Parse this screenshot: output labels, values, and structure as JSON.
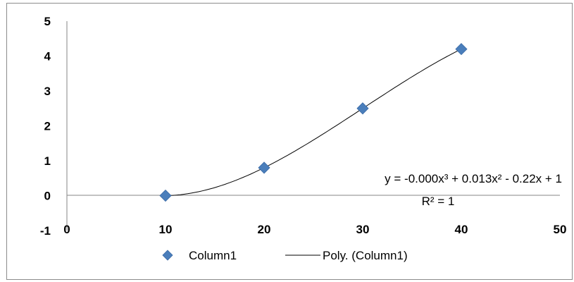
{
  "chart_data": {
    "type": "scatter",
    "x": [
      10,
      20,
      30,
      40
    ],
    "series": [
      {
        "name": "Column1",
        "values": [
          0,
          0.8,
          2.5,
          4.2
        ],
        "marker": "diamond",
        "color": "#4a7ebb"
      },
      {
        "name": "Poly. (Column1)",
        "kind": "trendline-poly3",
        "color": "#000000"
      }
    ],
    "xlim": [
      0,
      50
    ],
    "ylim": [
      -1,
      5
    ],
    "xticks": [
      "0",
      "10",
      "20",
      "30",
      "40",
      "50"
    ],
    "yticks": [
      "5",
      "4",
      "3",
      "2",
      "1",
      "0",
      "-1"
    ],
    "trendline_equation": "y = -0.000x³ + 0.013x² - 0.22x + 1",
    "r_squared_label": "R² = 1",
    "legend_position": "bottom",
    "grid": false
  }
}
